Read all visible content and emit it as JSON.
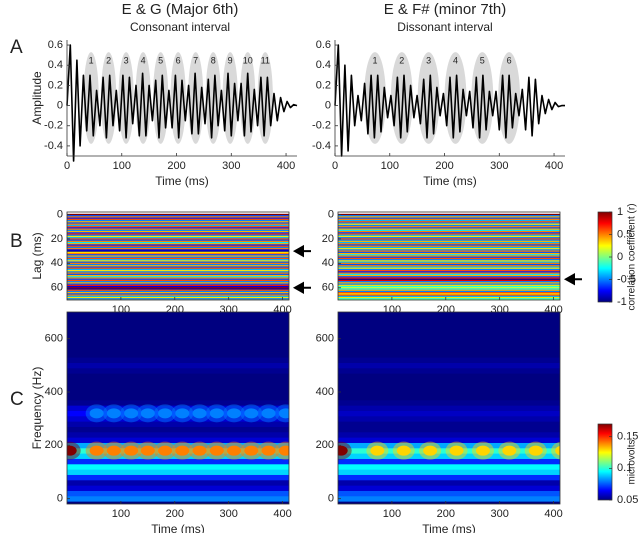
{
  "columns": [
    {
      "title": "E & G (Major 6th)",
      "subtitle": "Consonant interval"
    },
    {
      "title": "E & F# (minor 7th)",
      "subtitle": "Dissonant interval"
    }
  ],
  "panel_labels": [
    "A",
    "B",
    "C"
  ],
  "chart_data": [
    {
      "type": "waveform",
      "ylabel": "Amplitude",
      "xlabel": "Time (ms)",
      "color": "#000000",
      "x": [
        0,
        6,
        12,
        18,
        24,
        30,
        36,
        42,
        48,
        54,
        60,
        66,
        72,
        78,
        84,
        90,
        96,
        102,
        108,
        114,
        120,
        126,
        132,
        138,
        144,
        150,
        156,
        162,
        168,
        174,
        180,
        186,
        192,
        198,
        204,
        210,
        216,
        222,
        228,
        234,
        240,
        246,
        252,
        258,
        264,
        270,
        276,
        282,
        288,
        294,
        300,
        306,
        312,
        318,
        324,
        330,
        336,
        342,
        348,
        354,
        360,
        366,
        372,
        378,
        384,
        390,
        396,
        402,
        408,
        414,
        420
      ],
      "values": [
        0,
        0.6,
        -0.55,
        0.45,
        -0.4,
        0.3,
        -0.25,
        0.3,
        -0.3,
        0.15,
        -0.2,
        0.28,
        -0.32,
        0.3,
        -0.2,
        0.15,
        -0.25,
        0.3,
        -0.32,
        0.28,
        -0.18,
        0.2,
        -0.3,
        0.32,
        -0.3,
        0.2,
        -0.15,
        0.25,
        -0.32,
        0.3,
        -0.22,
        0.15,
        -0.22,
        0.3,
        -0.32,
        0.25,
        -0.15,
        0.2,
        -0.28,
        0.32,
        -0.28,
        0.18,
        -0.18,
        0.26,
        -0.32,
        0.3,
        -0.2,
        0.15,
        -0.25,
        0.32,
        -0.3,
        0.22,
        -0.15,
        0.22,
        -0.3,
        0.32,
        -0.26,
        0.16,
        -0.2,
        0.28,
        -0.3,
        0.28,
        -0.2,
        0.12,
        -0.15,
        0.08,
        -0.06,
        0.04,
        -0.02,
        0.01,
        0
      ],
      "xlim": [
        0,
        420
      ],
      "ylim": [
        -0.5,
        0.65
      ],
      "xticks": [
        0,
        100,
        200,
        300,
        400
      ],
      "yticks": [
        0.6,
        0.4,
        0.2,
        0,
        -0.2,
        -0.4
      ],
      "cycles": {
        "labels": [
          "1",
          "2",
          "3",
          "4",
          "5",
          "6",
          "7",
          "8",
          "9",
          "10",
          "11"
        ],
        "centers": [
          44,
          76,
          108,
          139,
          171,
          203,
          235,
          267,
          298,
          330,
          362
        ],
        "width": 28,
        "yrange": [
          -0.38,
          0.53
        ],
        "color": "#d9d9d9"
      }
    },
    {
      "type": "waveform",
      "xlabel": "Time (ms)",
      "color": "#000000",
      "x": [
        0,
        6,
        12,
        18,
        24,
        30,
        36,
        42,
        48,
        54,
        60,
        66,
        72,
        78,
        84,
        90,
        96,
        102,
        108,
        114,
        120,
        126,
        132,
        138,
        144,
        150,
        156,
        162,
        168,
        174,
        180,
        186,
        192,
        198,
        204,
        210,
        216,
        222,
        228,
        234,
        240,
        246,
        252,
        258,
        264,
        270,
        276,
        282,
        288,
        294,
        300,
        306,
        312,
        318,
        324,
        330,
        336,
        342,
        348,
        354,
        360,
        366,
        372,
        378,
        384,
        390,
        396,
        402,
        408,
        414,
        420
      ],
      "values": [
        0,
        0.6,
        -0.5,
        0.4,
        -0.45,
        0.3,
        -0.2,
        0.1,
        -0.15,
        0.22,
        -0.28,
        0.3,
        -0.32,
        0.3,
        -0.26,
        0.18,
        -0.12,
        0.1,
        -0.2,
        0.28,
        -0.32,
        0.3,
        -0.26,
        0.2,
        -0.12,
        0.1,
        -0.18,
        0.26,
        -0.32,
        0.3,
        -0.28,
        0.18,
        -0.1,
        0.12,
        -0.2,
        0.28,
        -0.32,
        0.3,
        -0.26,
        0.16,
        -0.1,
        0.14,
        -0.22,
        0.28,
        -0.32,
        0.3,
        -0.24,
        0.14,
        -0.1,
        0.14,
        -0.24,
        0.3,
        -0.32,
        0.3,
        -0.22,
        0.12,
        -0.1,
        0.16,
        -0.24,
        0.28,
        -0.3,
        0.26,
        -0.18,
        0.1,
        -0.08,
        0.06,
        -0.04,
        0.03,
        -0.01,
        0,
        0
      ],
      "xlim": [
        0,
        420
      ],
      "ylim": [
        -0.5,
        0.65
      ],
      "xticks": [
        0,
        100,
        200,
        300,
        400
      ],
      "yticks": [
        0.6,
        0.4,
        0.2,
        0,
        -0.2,
        -0.4
      ],
      "cycles": {
        "labels": [
          "1",
          "2",
          "3",
          "4",
          "5",
          "6"
        ],
        "centers": [
          73,
          122,
          171,
          220,
          269,
          318
        ],
        "width": 40,
        "yrange": [
          -0.38,
          0.53
        ],
        "color": "#d9d9d9"
      }
    },
    {
      "type": "lag-heatmap",
      "ylabel": "Lag (ms)",
      "xlabel": "Time (ms)",
      "colormap": "jet",
      "y_inverted": true,
      "y": [
        0,
        1,
        2,
        3,
        4,
        5,
        6,
        7,
        8,
        9,
        10,
        11,
        12,
        13,
        14,
        15,
        16,
        17,
        18,
        19,
        20,
        21,
        22,
        23,
        24,
        25,
        26,
        27,
        28,
        29,
        30,
        31,
        32,
        33,
        34,
        35,
        36,
        37,
        38,
        39,
        40,
        41,
        42,
        43,
        44,
        45,
        46,
        47,
        48,
        49,
        50,
        51,
        52,
        53,
        54,
        55,
        56,
        57,
        58,
        59,
        60,
        61,
        62,
        63,
        64,
        65,
        66,
        67,
        68,
        69,
        70
      ],
      "values": [
        1,
        -0.6,
        0.5,
        -0.7,
        0.6,
        -0.5,
        0.4,
        -0.6,
        0.5,
        -0.4,
        0.6,
        -0.7,
        0.5,
        -0.5,
        0.4,
        -0.6,
        0.7,
        -0.5,
        0.3,
        -0.4,
        0.6,
        -0.6,
        0.5,
        -0.3,
        0.4,
        -0.7,
        0.6,
        -0.5,
        0.5,
        -0.8,
        -0.95,
        0.3,
        0.5,
        -0.6,
        0.4,
        -0.5,
        0.6,
        -0.4,
        0.3,
        -0.6,
        0.5,
        -0.5,
        0.4,
        -0.6,
        0.6,
        -0.4,
        0.3,
        -0.5,
        0.5,
        -0.6,
        0.4,
        -0.3,
        0.5,
        -0.6,
        0.6,
        -0.5,
        0.4,
        -0.6,
        0.7,
        -0.8,
        0.95,
        -0.9,
        0.6,
        -0.5,
        0.4,
        -0.6,
        0.5,
        -0.4,
        0.3,
        -0.5,
        0.4
      ],
      "xlim": [
        0,
        412
      ],
      "ylim": [
        -2,
        70
      ],
      "xticks": [
        100,
        200,
        300,
        400
      ],
      "yticks": [
        0,
        20,
        40,
        60
      ],
      "arrows": [
        30,
        60
      ]
    },
    {
      "type": "lag-heatmap",
      "xlabel": "Time (ms)",
      "colormap": "jet",
      "y_inverted": true,
      "y": [
        0,
        1,
        2,
        3,
        4,
        5,
        6,
        7,
        8,
        9,
        10,
        11,
        12,
        13,
        14,
        15,
        16,
        17,
        18,
        19,
        20,
        21,
        22,
        23,
        24,
        25,
        26,
        27,
        28,
        29,
        30,
        31,
        32,
        33,
        34,
        35,
        36,
        37,
        38,
        39,
        40,
        41,
        42,
        43,
        44,
        45,
        46,
        47,
        48,
        49,
        50,
        51,
        52,
        53,
        54,
        55,
        56,
        57,
        58,
        59,
        60,
        61,
        62,
        63,
        64,
        65,
        66,
        67,
        68,
        69,
        70
      ],
      "values": [
        1,
        -0.5,
        0.4,
        -0.6,
        0.5,
        -0.4,
        0.6,
        -0.5,
        0.3,
        -0.5,
        0.5,
        -0.6,
        0.4,
        -0.3,
        0.5,
        -0.6,
        0.6,
        -0.4,
        0.3,
        -0.5,
        0.6,
        -0.5,
        0.4,
        -0.4,
        0.5,
        -0.6,
        0.5,
        -0.4,
        0.3,
        -0.5,
        0.5,
        -0.6,
        0.4,
        -0.3,
        0.5,
        -0.6,
        0.6,
        -0.5,
        0.3,
        -0.4,
        0.5,
        -0.6,
        0.5,
        -0.4,
        0.3,
        -0.5,
        0.6,
        -0.7,
        0.5,
        -0.3,
        0.4,
        -0.6,
        0.7,
        -0.95,
        0.8,
        -0.5,
        0.4,
        -0.5,
        0.3,
        -0.2,
        0.2,
        -0.3,
        0.4,
        -0.5,
        0.6,
        0.3,
        0.6,
        -0.4,
        0.3,
        -0.2,
        0.2
      ],
      "xlim": [
        0,
        412
      ],
      "ylim": [
        -2,
        70
      ],
      "xticks": [
        100,
        200,
        300,
        400
      ],
      "yticks": [
        0,
        20,
        40,
        60
      ],
      "arrows": [
        53
      ]
    },
    {
      "type": "spectrogram",
      "ylabel": "Frequency (Hz)",
      "xlabel": "Time (ms)",
      "colormap": "jet",
      "y": [
        0,
        20,
        40,
        60,
        80,
        100,
        120,
        140,
        160,
        180,
        200,
        220,
        240,
        260,
        280,
        300,
        320,
        340,
        360,
        380,
        400,
        420,
        440,
        460,
        480,
        500,
        520,
        540,
        560,
        580,
        600,
        620,
        640,
        660,
        680,
        700
      ],
      "values": [
        0.08,
        0.075,
        0.06,
        0.055,
        0.07,
        0.09,
        0.095,
        0.07,
        0.09,
        0.1,
        0.085,
        0.06,
        0.055,
        0.052,
        0.055,
        0.06,
        0.065,
        0.06,
        0.052,
        0.05,
        0.05,
        0.05,
        0.05,
        0.05,
        0.052,
        0.055,
        0.052,
        0.05,
        0.05,
        0.05,
        0.05,
        0.05,
        0.05,
        0.05,
        0.05,
        0.05
      ],
      "bursts": [
        {
          "freq": 180,
          "times": [
            5,
            55,
            87,
            119,
            150,
            182,
            214,
            246,
            278,
            310,
            342,
            374,
            406
          ],
          "values": [
            0.17,
            0.14,
            0.14,
            0.14,
            0.14,
            0.14,
            0.14,
            0.14,
            0.14,
            0.14,
            0.14,
            0.14,
            0.14
          ]
        },
        {
          "freq": 320,
          "times": [
            55,
            87,
            119,
            150,
            182,
            214,
            246,
            278,
            310,
            342,
            374,
            406
          ],
          "values": [
            0.08,
            0.08,
            0.08,
            0.08,
            0.08,
            0.08,
            0.08,
            0.08,
            0.08,
            0.08,
            0.08,
            0.08
          ]
        }
      ],
      "xlim": [
        0,
        412
      ],
      "ylim": [
        -20,
        700
      ],
      "xticks": [
        100,
        200,
        300,
        400
      ],
      "yticks": [
        0,
        200,
        400,
        600
      ]
    },
    {
      "type": "spectrogram",
      "xlabel": "Time (ms)",
      "colormap": "jet",
      "y": [
        0,
        20,
        40,
        60,
        80,
        100,
        120,
        140,
        160,
        180,
        200,
        220,
        240,
        260,
        280,
        300,
        320,
        340,
        360,
        380,
        400,
        420,
        440,
        460,
        480,
        500,
        520,
        540,
        560,
        580,
        600,
        620,
        640,
        660,
        680,
        700
      ],
      "values": [
        0.08,
        0.075,
        0.06,
        0.055,
        0.07,
        0.09,
        0.095,
        0.07,
        0.09,
        0.1,
        0.085,
        0.06,
        0.055,
        0.052,
        0.052,
        0.055,
        0.058,
        0.055,
        0.052,
        0.05,
        0.05,
        0.05,
        0.05,
        0.05,
        0.052,
        0.055,
        0.052,
        0.05,
        0.05,
        0.05,
        0.05,
        0.05,
        0.05,
        0.05,
        0.05,
        0.05
      ],
      "bursts": [
        {
          "freq": 180,
          "times": [
            5,
            73,
            122,
            171,
            220,
            269,
            318,
            367,
            416
          ],
          "values": [
            0.17,
            0.13,
            0.13,
            0.13,
            0.13,
            0.13,
            0.13,
            0.13,
            0.13
          ]
        }
      ],
      "xlim": [
        0,
        412
      ],
      "ylim": [
        -20,
        700
      ],
      "xticks": [
        100,
        200,
        300,
        400
      ],
      "yticks": [
        0,
        200,
        400,
        600
      ]
    },
    {
      "type": "colorbar",
      "label": "correlation coefficient (r)",
      "colormap": "jet",
      "ylim": [
        -1,
        1
      ],
      "yticks": [
        1,
        0.5,
        0,
        -0.5,
        -1
      ]
    },
    {
      "type": "colorbar",
      "label": "microvolts",
      "colormap": "jet",
      "ylim": [
        0.05,
        0.17
      ],
      "yticks": [
        0.15,
        0.1,
        0.05
      ]
    }
  ]
}
